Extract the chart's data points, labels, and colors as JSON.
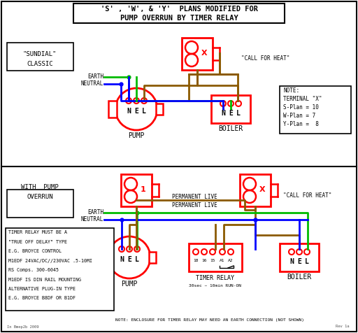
{
  "title_line1": "'S' , 'W', & 'Y'  PLANS MODIFIED FOR",
  "title_line2": "PUMP OVERRUN BY TIMER RELAY",
  "bg_color": "#ffffff",
  "earth_color": "#00bb00",
  "neutral_color": "#0000ff",
  "live_color": "#8B5A00",
  "call_heat_color": "#008800",
  "red_color": "#ff0000",
  "note_text": [
    "NOTE:",
    "TERMINAL \"X\"",
    "S-Plan = 10",
    "W-Plan = 7",
    "Y-Plan =  8"
  ],
  "bottom_note": "NOTE: ENCLOSURE FOR TIMER RELAY MAY NEED AN EARTH CONNECTION (NOT SHOWN)",
  "watermark": "In Bmep2b 2009",
  "rev": "Rev 1a",
  "info_lines": [
    "TIMER RELAY MUST BE A",
    "\"TRUE OFF DELAY\" TYPE",
    "E.G. BROYCE CONTROL",
    "M1EDF 24VAC/DC//230VAC .5-10MI",
    "RS Comps. 300-6045",
    "M1EDF IS DIN RAIL MOUNTING",
    "ALTERNATIVE PLUG-IN TYPE",
    "E.G. BROYCE B8DF OR B1DF"
  ]
}
